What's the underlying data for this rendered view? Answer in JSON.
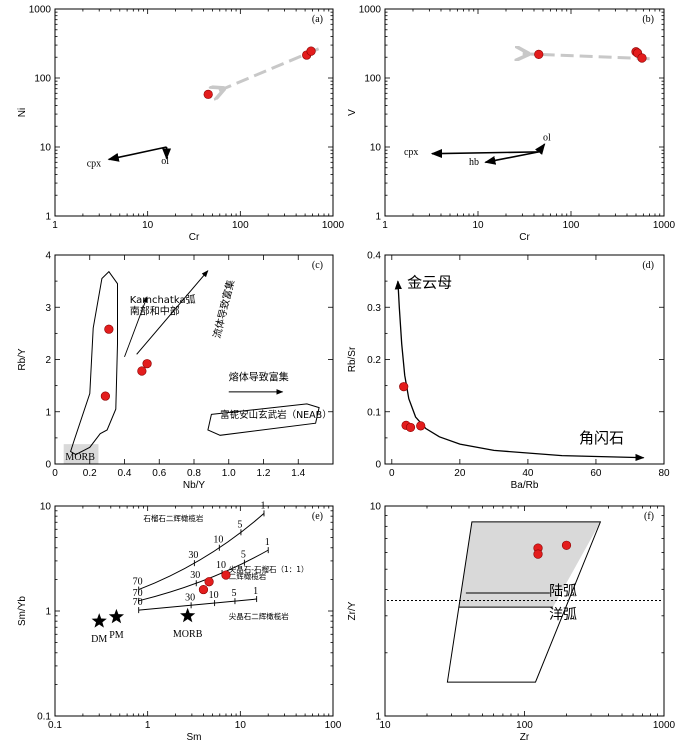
{
  "colors": {
    "point": "#e31d1d",
    "dash_arrow": "#c8c8c8",
    "shade": "#d9d9d9"
  },
  "chart_data": [
    {
      "id": "a",
      "type": "scatter",
      "panel_label": "(a)",
      "xscale": "log",
      "yscale": "log",
      "xlim": [
        1,
        1000
      ],
      "ylim": [
        1,
        1000
      ],
      "xlabel": "Cr",
      "ylabel": "Ni",
      "xticks": [
        {
          "v": 1,
          "t": "1"
        },
        {
          "v": 10,
          "t": "10"
        },
        {
          "v": 100,
          "t": "100"
        },
        {
          "v": 1000,
          "t": "1000"
        }
      ],
      "yticks": [
        {
          "v": 1,
          "t": "1"
        },
        {
          "v": 10,
          "t": "10"
        },
        {
          "v": 100,
          "t": "100"
        },
        {
          "v": 1000,
          "t": "1000"
        }
      ],
      "points": [
        {
          "x": 45,
          "y": 58
        },
        {
          "x": 520,
          "y": 215
        },
        {
          "x": 580,
          "y": 245
        }
      ],
      "lines": [
        {
          "pts": [
            [
              16,
              10
            ],
            [
              3.8,
              6.6
            ]
          ],
          "arrow": true,
          "label": "cpx",
          "lx": 2.2,
          "ly": 5.2
        },
        {
          "pts": [
            [
              16,
              10
            ],
            [
              16,
              6.8
            ]
          ],
          "arrow": true,
          "label": "ol",
          "lx": 14,
          "ly": 5.7
        }
      ],
      "dash_arrows": [
        {
          "from": [
            700,
            265
          ],
          "to": [
            58,
            65
          ]
        }
      ]
    },
    {
      "id": "b",
      "type": "scatter",
      "panel_label": "(b)",
      "xscale": "log",
      "yscale": "log",
      "xlim": [
        1,
        1000
      ],
      "ylim": [
        1,
        1000
      ],
      "xlabel": "Cr",
      "ylabel": "V",
      "xticks": [
        {
          "v": 1,
          "t": "1"
        },
        {
          "v": 10,
          "t": "10"
        },
        {
          "v": 100,
          "t": "100"
        },
        {
          "v": 1000,
          "t": "1000"
        }
      ],
      "yticks": [
        {
          "v": 1,
          "t": "1"
        },
        {
          "v": 10,
          "t": "10"
        },
        {
          "v": 100,
          "t": "100"
        },
        {
          "v": 1000,
          "t": "1000"
        }
      ],
      "points": [
        {
          "x": 45,
          "y": 220
        },
        {
          "x": 500,
          "y": 240
        },
        {
          "x": 520,
          "y": 230
        },
        {
          "x": 580,
          "y": 195
        }
      ],
      "lines": [
        {
          "pts": [
            [
              45,
              8.5
            ],
            [
              3.2,
              8
            ]
          ],
          "arrow": true,
          "label": "cpx",
          "lx": 1.6,
          "ly": 7.7
        },
        {
          "pts": [
            [
              45,
              8.5
            ],
            [
              52,
              11
            ]
          ],
          "arrow": true,
          "label": "ol",
          "lx": 50,
          "ly": 12.5
        },
        {
          "pts": [
            [
              45,
              8.5
            ],
            [
              12,
              6
            ]
          ],
          "arrow": true,
          "label": "hb",
          "lx": 8,
          "ly": 5.5
        }
      ],
      "dash_arrows": [
        {
          "from": [
            700,
            190
          ],
          "to": [
            30,
            225
          ]
        }
      ]
    },
    {
      "id": "c",
      "type": "scatter",
      "panel_label": "(c)",
      "xscale": "linear",
      "yscale": "linear",
      "xlim": [
        0,
        1.6
      ],
      "ylim": [
        0,
        4
      ],
      "xlabel": "Nb/Y",
      "ylabel": "Rb/Y",
      "xticks": [
        {
          "v": 0,
          "t": "0"
        },
        {
          "v": 0.2,
          "t": "0.2"
        },
        {
          "v": 0.4,
          "t": "0.4"
        },
        {
          "v": 0.6,
          "t": "0.6"
        },
        {
          "v": 0.8,
          "t": "0.8"
        },
        {
          "v": 1.0,
          "t": "1.0"
        },
        {
          "v": 1.2,
          "t": "1.2"
        },
        {
          "v": 1.4,
          "t": "1.4"
        }
      ],
      "yticks": [
        {
          "v": 0,
          "t": "0"
        },
        {
          "v": 1,
          "t": "1"
        },
        {
          "v": 2,
          "t": "2"
        },
        {
          "v": 3,
          "t": "3"
        },
        {
          "v": 4,
          "t": "4"
        }
      ],
      "points": [
        {
          "x": 0.31,
          "y": 2.58
        },
        {
          "x": 0.29,
          "y": 1.3
        },
        {
          "x": 0.5,
          "y": 1.78
        },
        {
          "x": 0.53,
          "y": 1.92
        }
      ],
      "annotations": {
        "morb": "MORB",
        "kamchatka_l1": "Kamchatka弧",
        "kamchatka_l2": "南部和中部",
        "fluid": "流体导致富集",
        "melt": "熔体导致富集",
        "neab": "富铌安山玄武岩（NEAB）"
      }
    },
    {
      "id": "d",
      "type": "scatter",
      "panel_label": "(d)",
      "xscale": "linear",
      "yscale": "linear",
      "xlim": [
        -2,
        80
      ],
      "ylim": [
        0,
        0.4
      ],
      "xlabel": "Ba/Rb",
      "ylabel": "Rb/Sr",
      "xticks": [
        {
          "v": 0,
          "t": "0"
        },
        {
          "v": 20,
          "t": "20"
        },
        {
          "v": 40,
          "t": "40"
        },
        {
          "v": 60,
          "t": "60"
        },
        {
          "v": 80,
          "t": "80"
        }
      ],
      "yticks": [
        {
          "v": 0,
          "t": "0"
        },
        {
          "v": 0.1,
          "t": "0.1"
        },
        {
          "v": 0.2,
          "t": "0.2"
        },
        {
          "v": 0.3,
          "t": "0.3"
        },
        {
          "v": 0.4,
          "t": "0.4"
        }
      ],
      "points": [
        {
          "x": 3.5,
          "y": 0.148
        },
        {
          "x": 4.2,
          "y": 0.074
        },
        {
          "x": 5.5,
          "y": 0.07
        },
        {
          "x": 8.5,
          "y": 0.073
        }
      ],
      "annotations": {
        "phlogopite": "金云母",
        "amphibole": "角闪石"
      }
    },
    {
      "id": "e",
      "type": "scatter",
      "panel_label": "(e)",
      "xscale": "log",
      "yscale": "log",
      "xlim": [
        0.1,
        100
      ],
      "ylim": [
        0.1,
        10
      ],
      "xlabel": "Sm",
      "ylabel": "Sm/Yb",
      "xticks": [
        {
          "v": 0.1,
          "t": "0.1"
        },
        {
          "v": 1,
          "t": "1"
        },
        {
          "v": 10,
          "t": "10"
        },
        {
          "v": 100,
          "t": "100"
        }
      ],
      "yticks": [
        {
          "v": 0.1,
          "t": "0.1"
        },
        {
          "v": 1,
          "t": "1"
        },
        {
          "v": 10,
          "t": "10"
        }
      ],
      "points": [
        {
          "x": 4.6,
          "y": 1.9
        },
        {
          "x": 7,
          "y": 2.2
        },
        {
          "x": 4,
          "y": 1.6
        }
      ],
      "stars": [
        {
          "x": 0.3,
          "y": 0.8,
          "label": "DM"
        },
        {
          "x": 0.46,
          "y": 0.88,
          "label": "PM"
        },
        {
          "x": 2.7,
          "y": 0.9,
          "label": "MORB"
        }
      ],
      "curves": [
        {
          "label": "石榴石二辉橄榄岩",
          "x0": 0.8,
          "y0": 1.6,
          "x1": 18,
          "y1": 8.5,
          "ticks": [
            "70",
            "30",
            "10",
            "5",
            "1"
          ]
        },
        {
          "label": "尖晶石-石榴石（1：1）二辉橄榄岩",
          "x0": 0.8,
          "y0": 1.25,
          "x1": 20,
          "y1": 3.8,
          "ticks": [
            "70",
            "30",
            "10",
            "5",
            "1"
          ]
        },
        {
          "label": "尖晶石二辉橄榄岩",
          "x0": 0.8,
          "y0": 1.02,
          "x1": 15,
          "y1": 1.3,
          "ticks": [
            "70",
            "30",
            "10",
            "5",
            "1"
          ]
        }
      ]
    },
    {
      "id": "f",
      "type": "scatter",
      "panel_label": "(f)",
      "xscale": "log",
      "yscale": "log",
      "xlim": [
        10,
        1000
      ],
      "ylim": [
        1,
        10
      ],
      "xlabel": "Zr",
      "ylabel": "Zr/Y",
      "xticks": [
        {
          "v": 10,
          "t": "10"
        },
        {
          "v": 100,
          "t": "100"
        },
        {
          "v": 1000,
          "t": "1000"
        }
      ],
      "yticks": [
        {
          "v": 1,
          "t": "1"
        },
        {
          "v": 10,
          "t": "10"
        }
      ],
      "points": [
        {
          "x": 125,
          "y": 6.3
        },
        {
          "x": 125,
          "y": 5.9
        },
        {
          "x": 200,
          "y": 6.5
        }
      ],
      "annotations": {
        "continental": "陆弧",
        "oceanic": "洋弧"
      }
    }
  ]
}
